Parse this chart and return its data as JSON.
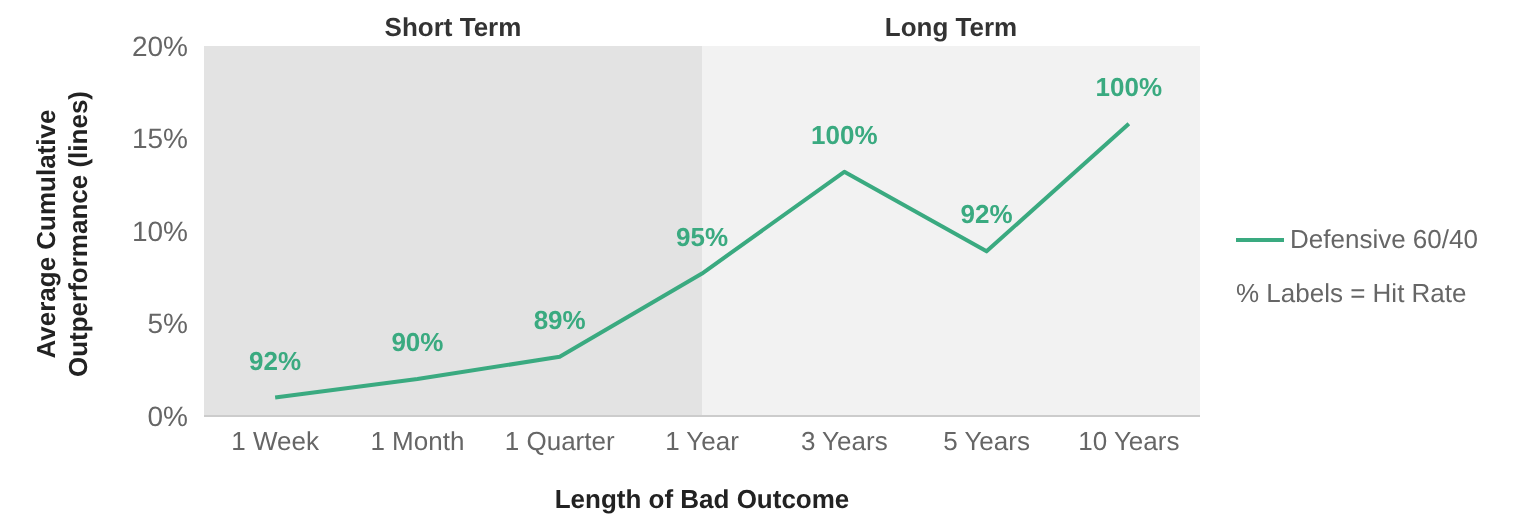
{
  "chart_data": {
    "type": "line",
    "xlabel": "Length of Bad Outcome",
    "ylabel": "Average Cumulative Outperformance (lines)",
    "categories": [
      "1 Week",
      "1 Month",
      "1 Quarter",
      "1 Year",
      "3 Years",
      "5 Years",
      "10 Years"
    ],
    "series": [
      {
        "name": "Defensive 60/40",
        "color": "#3aaa80",
        "values": [
          1.0,
          2.0,
          3.2,
          7.7,
          13.2,
          8.9,
          15.8
        ]
      }
    ],
    "ylim": [
      0,
      20
    ],
    "yticks": [
      {
        "value": 0,
        "label": "0%"
      },
      {
        "value": 5,
        "label": "5%"
      },
      {
        "value": 10,
        "label": "10%"
      },
      {
        "value": 15,
        "label": "15%"
      },
      {
        "value": 20,
        "label": "20%"
      }
    ],
    "bands": [
      {
        "axis": "x",
        "from": "1 Week",
        "to": "1 Year",
        "label": "Short Term",
        "color": "#e3e3e3"
      },
      {
        "axis": "x",
        "from": "1 Year",
        "to": "10 Years",
        "label": "Long Term",
        "color": "#f2f2f2"
      }
    ],
    "annotations": [
      "% Labels = Hit Rate",
      {
        "text": "92%",
        "x": "1 Week",
        "y": 1.0
      },
      {
        "text": "90%",
        "x": "1 Month",
        "y": 2.0
      },
      {
        "text": "89%",
        "x": "1 Quarter",
        "y": 3.2
      },
      {
        "text": "95%",
        "x": "1 Year",
        "y": 7.7
      },
      {
        "text": "100%",
        "x": "3 Years",
        "y": 13.2
      },
      {
        "text": "92%",
        "x": "5 Years",
        "y": 8.9
      },
      {
        "text": "100%",
        "x": "10 Years",
        "y": 15.8
      }
    ],
    "legend": "right",
    "grid": false,
    "marker": "none",
    "line_style": "solid"
  }
}
